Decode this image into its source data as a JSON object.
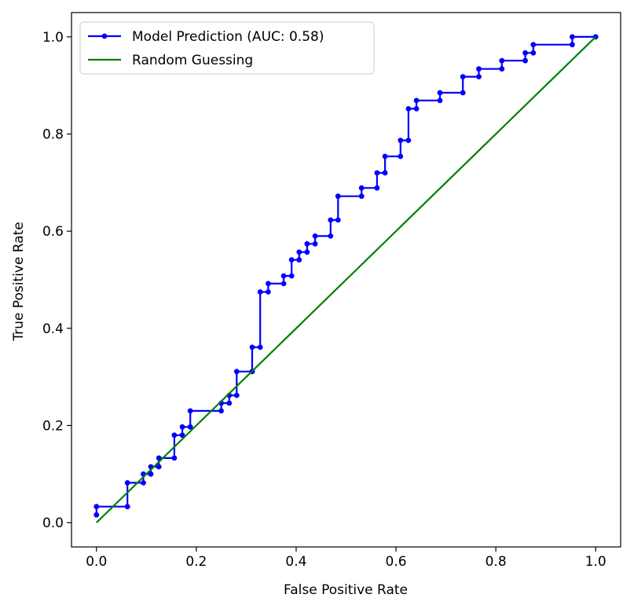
{
  "chart_data": {
    "type": "line",
    "title": "",
    "xlabel": "False Positive Rate",
    "ylabel": "True Positive Rate",
    "xlim": [
      -0.05,
      1.05
    ],
    "ylim": [
      -0.05,
      1.05
    ],
    "xticks": [
      0.0,
      0.2,
      0.4,
      0.6,
      0.8,
      1.0
    ],
    "yticks": [
      0.0,
      0.2,
      0.4,
      0.6,
      0.8,
      1.0
    ],
    "tick_labels": [
      "0.0",
      "0.2",
      "0.4",
      "0.6",
      "0.8",
      "1.0"
    ],
    "grid": false,
    "legend_position": "top-left",
    "series": [
      {
        "name": "Model Prediction (AUC: 0.58)",
        "color": "#0000ff",
        "marker": "circle",
        "x": [
          0.0,
          0.0,
          0.062,
          0.062,
          0.094,
          0.094,
          0.109,
          0.109,
          0.125,
          0.125,
          0.156,
          0.156,
          0.172,
          0.172,
          0.188,
          0.188,
          0.25,
          0.25,
          0.266,
          0.266,
          0.281,
          0.281,
          0.312,
          0.312,
          0.328,
          0.328,
          0.344,
          0.344,
          0.375,
          0.375,
          0.391,
          0.391,
          0.406,
          0.406,
          0.422,
          0.422,
          0.438,
          0.438,
          0.469,
          0.469,
          0.484,
          0.484,
          0.531,
          0.531,
          0.562,
          0.562,
          0.578,
          0.578,
          0.609,
          0.609,
          0.625,
          0.625,
          0.641,
          0.641,
          0.688,
          0.688,
          0.734,
          0.734,
          0.766,
          0.766,
          0.812,
          0.812,
          0.859,
          0.859,
          0.875,
          0.875,
          0.953,
          0.953,
          1.0,
          1.0
        ],
        "y": [
          0.016,
          0.033,
          0.033,
          0.082,
          0.082,
          0.1,
          0.1,
          0.115,
          0.115,
          0.133,
          0.133,
          0.18,
          0.18,
          0.197,
          0.197,
          0.23,
          0.23,
          0.246,
          0.246,
          0.262,
          0.262,
          0.311,
          0.311,
          0.361,
          0.361,
          0.475,
          0.475,
          0.492,
          0.492,
          0.508,
          0.508,
          0.541,
          0.541,
          0.557,
          0.557,
          0.574,
          0.574,
          0.59,
          0.59,
          0.623,
          0.623,
          0.672,
          0.672,
          0.689,
          0.689,
          0.72,
          0.72,
          0.754,
          0.754,
          0.787,
          0.787,
          0.852,
          0.852,
          0.869,
          0.869,
          0.885,
          0.885,
          0.918,
          0.918,
          0.934,
          0.934,
          0.951,
          0.951,
          0.967,
          0.967,
          0.984,
          0.984,
          1.0,
          1.0,
          1.0
        ]
      },
      {
        "name": "Random Guessing",
        "color": "#008000",
        "marker": "none",
        "x": [
          0.0,
          1.0
        ],
        "y": [
          0.0,
          1.0
        ]
      }
    ]
  }
}
